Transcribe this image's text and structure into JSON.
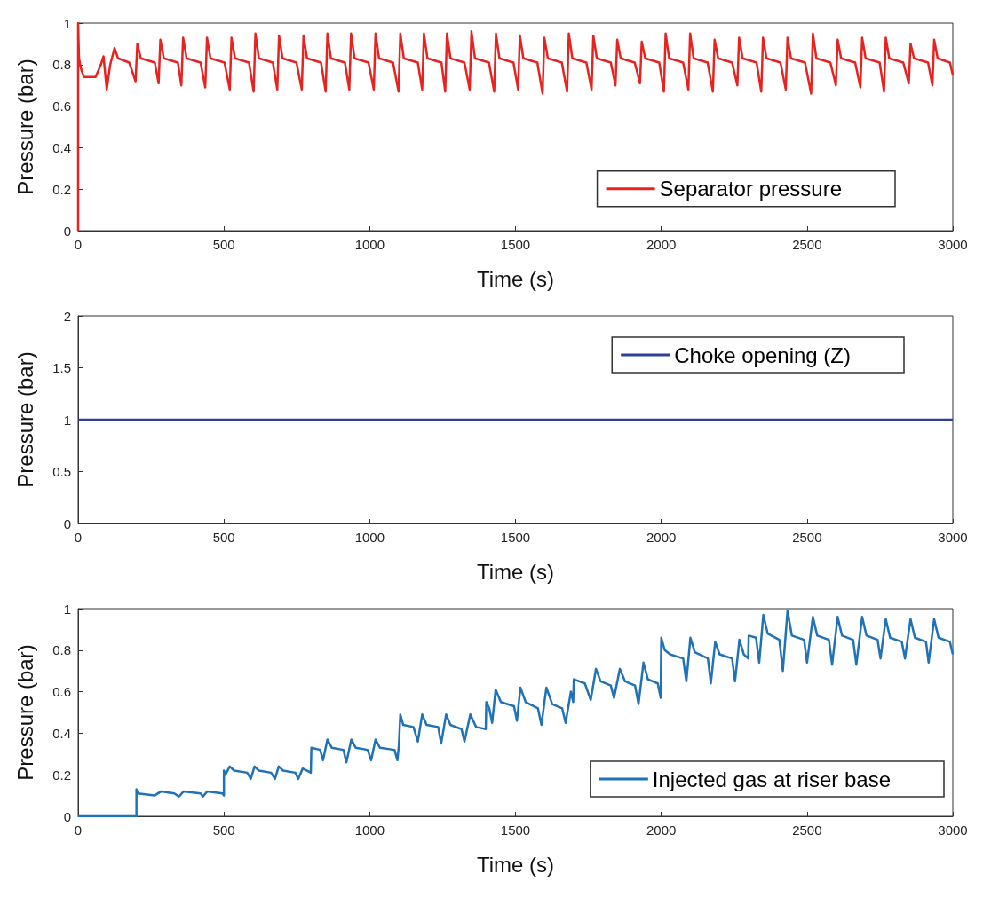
{
  "chart_data": [
    {
      "type": "line",
      "xlabel": "Time (s)",
      "ylabel": "Pressure (bar)",
      "xlim": [
        0,
        3000
      ],
      "xticks": [
        0,
        500,
        1000,
        1500,
        2000,
        2500,
        3000
      ],
      "ylim": [
        0,
        1
      ],
      "yticks": [
        0,
        0.2,
        0.4,
        0.6,
        0.8,
        1
      ],
      "legend": "right",
      "series": [
        {
          "name": "Separator pressure",
          "color": "#e8231f",
          "x": [
            0,
            0,
            3,
            10,
            20,
            60,
            78,
            87,
            98,
            110,
            125,
            137,
            175,
            197,
            203,
            215,
            263,
            276,
            282,
            294,
            342,
            354,
            360,
            372,
            420,
            436,
            442,
            454,
            502,
            520,
            526,
            538,
            586,
            602,
            608,
            620,
            668,
            683,
            689,
            701,
            749,
            767,
            773,
            785,
            833,
            849,
            855,
            867,
            915,
            930,
            936,
            948,
            996,
            1014,
            1020,
            1032,
            1080,
            1099,
            1105,
            1117,
            1165,
            1180,
            1186,
            1198,
            1246,
            1259,
            1265,
            1277,
            1325,
            1343,
            1349,
            1361,
            1409,
            1427,
            1433,
            1445,
            1493,
            1509,
            1515,
            1527,
            1575,
            1593,
            1599,
            1611,
            1659,
            1677,
            1683,
            1695,
            1743,
            1761,
            1767,
            1779,
            1827,
            1843,
            1849,
            1861,
            1909,
            1927,
            1933,
            1945,
            1993,
            2009,
            2015,
            2027,
            2075,
            2093,
            2099,
            2111,
            2159,
            2177,
            2183,
            2195,
            2243,
            2261,
            2267,
            2279,
            2327,
            2343,
            2349,
            2361,
            2409,
            2427,
            2433,
            2445,
            2493,
            2514,
            2520,
            2532,
            2580,
            2599,
            2605,
            2617,
            2665,
            2683,
            2689,
            2701,
            2749,
            2764,
            2770,
            2782,
            2830,
            2849,
            2855,
            2867,
            2915,
            2930,
            2936,
            2948,
            2990,
            3000
          ],
          "values": [
            0,
            1,
            0.83,
            0.78,
            0.74,
            0.74,
            0.8,
            0.84,
            0.68,
            0.8,
            0.88,
            0.83,
            0.81,
            0.72,
            0.9,
            0.83,
            0.81,
            0.71,
            0.92,
            0.83,
            0.81,
            0.7,
            0.93,
            0.83,
            0.81,
            0.69,
            0.93,
            0.83,
            0.81,
            0.68,
            0.93,
            0.83,
            0.81,
            0.67,
            0.95,
            0.83,
            0.81,
            0.68,
            0.94,
            0.83,
            0.81,
            0.68,
            0.94,
            0.83,
            0.81,
            0.67,
            0.95,
            0.83,
            0.81,
            0.68,
            0.95,
            0.83,
            0.81,
            0.68,
            0.95,
            0.83,
            0.81,
            0.67,
            0.95,
            0.83,
            0.81,
            0.68,
            0.95,
            0.83,
            0.81,
            0.67,
            0.95,
            0.83,
            0.81,
            0.68,
            0.96,
            0.83,
            0.81,
            0.67,
            0.95,
            0.83,
            0.81,
            0.68,
            0.94,
            0.83,
            0.81,
            0.66,
            0.93,
            0.83,
            0.81,
            0.67,
            0.95,
            0.83,
            0.81,
            0.68,
            0.94,
            0.83,
            0.81,
            0.7,
            0.92,
            0.83,
            0.81,
            0.71,
            0.91,
            0.83,
            0.81,
            0.67,
            0.95,
            0.83,
            0.81,
            0.68,
            0.95,
            0.83,
            0.81,
            0.67,
            0.92,
            0.83,
            0.81,
            0.7,
            0.93,
            0.83,
            0.81,
            0.67,
            0.93,
            0.83,
            0.81,
            0.68,
            0.93,
            0.83,
            0.81,
            0.66,
            0.95,
            0.83,
            0.81,
            0.7,
            0.92,
            0.83,
            0.81,
            0.69,
            0.93,
            0.83,
            0.81,
            0.67,
            0.93,
            0.83,
            0.81,
            0.71,
            0.9,
            0.83,
            0.81,
            0.7,
            0.92,
            0.83,
            0.81,
            0.75
          ]
        }
      ]
    },
    {
      "type": "line",
      "xlabel": "Time (s)",
      "ylabel": "Pressure (bar)",
      "xlim": [
        0,
        3000
      ],
      "xticks": [
        0,
        500,
        1000,
        1500,
        2000,
        2500,
        3000
      ],
      "ylim": [
        0,
        2
      ],
      "yticks": [
        0,
        0.5,
        1,
        1.5,
        2
      ],
      "legend": "top right",
      "series": [
        {
          "name": "Choke opening (Z)",
          "color": "#2e3f99",
          "x": [
            0,
            3000
          ],
          "values": [
            1,
            1
          ]
        }
      ]
    },
    {
      "type": "line",
      "xlabel": "Time (s)",
      "ylabel": "Pressure (bar)",
      "xlim": [
        0,
        3000
      ],
      "xticks": [
        0,
        500,
        1000,
        1500,
        2000,
        2500,
        3000
      ],
      "ylim": [
        0,
        1
      ],
      "yticks": [
        0,
        0.2,
        0.4,
        0.6,
        0.8,
        1
      ],
      "legend": "bottom right",
      "series": [
        {
          "name": "Injected gas at riser base",
          "color": "#1f72b8",
          "x": [
            0,
            200,
            200,
            205,
            262,
            285,
            330,
            346,
            362,
            420,
            428,
            443,
            495,
            500,
            500,
            505,
            520,
            535,
            580,
            592,
            605,
            620,
            662,
            675,
            688,
            703,
            745,
            755,
            770,
            785,
            798,
            800,
            830,
            840,
            855,
            870,
            910,
            920,
            937,
            952,
            993,
            1005,
            1020,
            1035,
            1085,
            1095,
            1100,
            1105,
            1115,
            1150,
            1165,
            1180,
            1195,
            1235,
            1245,
            1262,
            1277,
            1315,
            1325,
            1345,
            1365,
            1398,
            1400,
            1410,
            1420,
            1432,
            1450,
            1495,
            1505,
            1517,
            1535,
            1577,
            1589,
            1606,
            1626,
            1660,
            1672,
            1690,
            1698,
            1700,
            1738,
            1758,
            1776,
            1792,
            1827,
            1838,
            1858,
            1876,
            1910,
            1922,
            1939,
            1954,
            1988,
            1998,
            2000,
            2012,
            2030,
            2075,
            2086,
            2100,
            2115,
            2160,
            2170,
            2185,
            2200,
            2243,
            2253,
            2268,
            2283,
            2298,
            2300,
            2325,
            2336,
            2350,
            2365,
            2405,
            2417,
            2433,
            2448,
            2490,
            2500,
            2520,
            2535,
            2575,
            2586,
            2605,
            2620,
            2658,
            2669,
            2689,
            2704,
            2742,
            2752,
            2770,
            2785,
            2825,
            2836,
            2855,
            2870,
            2908,
            2917,
            2936,
            2951,
            2990,
            3000
          ],
          "values": [
            0,
            0,
            0.13,
            0.11,
            0.1,
            0.12,
            0.11,
            0.095,
            0.12,
            0.11,
            0.095,
            0.12,
            0.11,
            0.1,
            0.22,
            0.2,
            0.24,
            0.22,
            0.21,
            0.18,
            0.24,
            0.22,
            0.21,
            0.18,
            0.24,
            0.22,
            0.21,
            0.18,
            0.23,
            0.22,
            0.21,
            0.33,
            0.32,
            0.27,
            0.37,
            0.33,
            0.32,
            0.26,
            0.37,
            0.33,
            0.32,
            0.27,
            0.37,
            0.33,
            0.32,
            0.27,
            0.34,
            0.49,
            0.44,
            0.43,
            0.36,
            0.49,
            0.44,
            0.43,
            0.35,
            0.49,
            0.44,
            0.42,
            0.36,
            0.49,
            0.43,
            0.42,
            0.55,
            0.52,
            0.45,
            0.61,
            0.55,
            0.53,
            0.46,
            0.62,
            0.55,
            0.52,
            0.44,
            0.62,
            0.54,
            0.52,
            0.45,
            0.6,
            0.55,
            0.66,
            0.64,
            0.56,
            0.71,
            0.65,
            0.63,
            0.57,
            0.71,
            0.65,
            0.63,
            0.54,
            0.74,
            0.66,
            0.64,
            0.57,
            0.86,
            0.8,
            0.78,
            0.76,
            0.65,
            0.86,
            0.79,
            0.76,
            0.64,
            0.84,
            0.78,
            0.76,
            0.65,
            0.85,
            0.78,
            0.76,
            0.87,
            0.86,
            0.74,
            0.97,
            0.88,
            0.85,
            0.7,
            0.99,
            0.87,
            0.85,
            0.74,
            0.96,
            0.87,
            0.85,
            0.73,
            0.96,
            0.87,
            0.85,
            0.73,
            0.96,
            0.87,
            0.85,
            0.76,
            0.95,
            0.86,
            0.84,
            0.76,
            0.95,
            0.86,
            0.84,
            0.74,
            0.95,
            0.86,
            0.84,
            0.78
          ]
        }
      ]
    }
  ]
}
